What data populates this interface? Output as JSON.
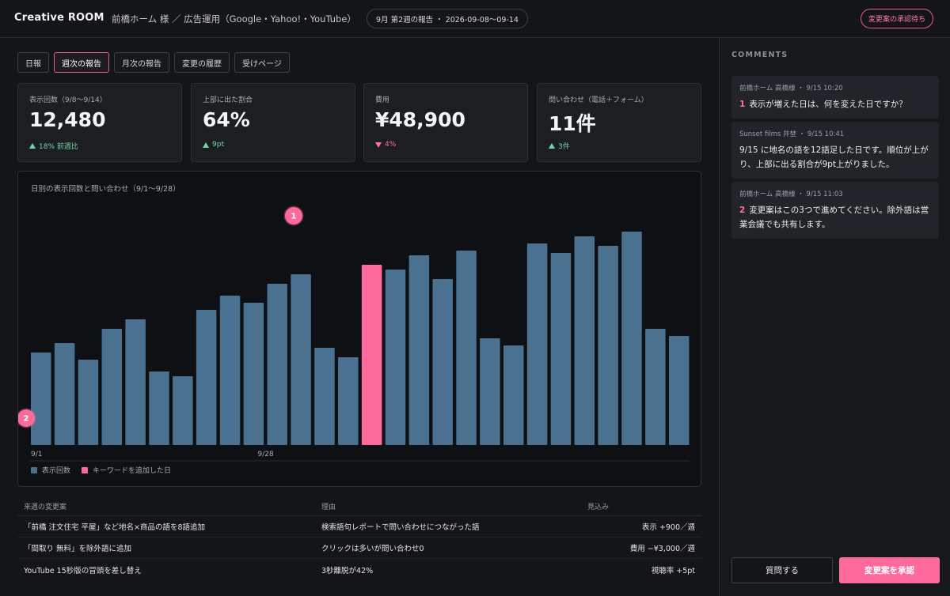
{
  "header": {
    "brand": "Creative ROOM",
    "client": "前橋ホーム 様 ／ 広告運用（Google・Yahoo!・YouTube）",
    "period": "9月 第2週の報告 ・ 2026-09-08〜09-14",
    "status": "変更案の承認待ち"
  },
  "tabs": [
    {
      "label": "日報"
    },
    {
      "label": "週次の報告"
    },
    {
      "label": "月次の報告"
    },
    {
      "label": "変更の履歴"
    },
    {
      "label": "受けページ"
    }
  ],
  "kpis": [
    {
      "label": "表示回数（9/8〜9/14）",
      "value": "12,480",
      "delta": "18% 前週比",
      "direction": "up"
    },
    {
      "label": "上部に出た割合",
      "value": "64%",
      "delta": "9pt",
      "direction": "up"
    },
    {
      "label": "費用",
      "value": "¥48,900",
      "delta": "4%",
      "direction": "down"
    },
    {
      "label": "問い合わせ（電話＋フォーム）",
      "value": "11件",
      "delta": "3件",
      "direction": "up"
    }
  ],
  "chart": {
    "title": "日別の表示回数と問い合わせ（9/1〜9/28）",
    "legend": [
      {
        "label": "表示回数",
        "color": "#4a7190"
      },
      {
        "label": "キーワードを追加した日",
        "color": "#ff6a9c"
      }
    ],
    "markers": [
      "1",
      "2"
    ]
  },
  "chart_data": {
    "type": "bar",
    "title": "日別の表示回数と問い合わせ（9/1〜9/28）",
    "categories": [
      "9/1",
      "9/2",
      "9/3",
      "9/4",
      "9/5",
      "9/6",
      "9/7",
      "9/8",
      "9/9",
      "9/10",
      "9/11",
      "9/12",
      "9/13",
      "9/14",
      "9/15",
      "9/16",
      "9/17",
      "9/18",
      "9/19",
      "9/20",
      "9/21",
      "9/22",
      "9/23",
      "9/24",
      "9/25",
      "9/26",
      "9/27",
      "9/28"
    ],
    "x_tick_labels": [
      "9/1",
      "9/28"
    ],
    "series": [
      {
        "name": "表示回数",
        "values": [
          39,
          43,
          36,
          49,
          53,
          31,
          29,
          57,
          63,
          60,
          68,
          72,
          41,
          37,
          76,
          74,
          80,
          70,
          82,
          45,
          42,
          85,
          81,
          88,
          84,
          90,
          49,
          46
        ]
      }
    ],
    "highlight_index": 14,
    "colors": {
      "bar": "#4a7190",
      "highlight": "#ff6a9c"
    }
  },
  "plan": {
    "headers": [
      "来週の変更案",
      "理由",
      "見込み"
    ],
    "rows": [
      [
        "「前橋 注文住宅 平屋」など地名×商品の語を8語追加",
        "検索語句レポートで問い合わせにつながった語",
        "表示 +900／週"
      ],
      [
        "「間取り 無料」を除外語に追加",
        "クリックは多いが問い合わせ0",
        "費用 −¥3,000／週"
      ],
      [
        "YouTube 15秒版の冒頭を差し替え",
        "3秒離脱が42%",
        "視聴率 +5pt"
      ]
    ]
  },
  "sidebar": {
    "title": "COMMENTS",
    "comments": [
      {
        "meta": "前橋ホーム 高橋様 ・ 9/15 10:20",
        "num": "1",
        "text": "表示が増えた日は、何を変えた日ですか？"
      },
      {
        "meta": "Sunset films 井埜 ・ 9/15 10:41",
        "num": "",
        "text": "9/15 に地名の語を12語足した日です。順位が上がり、上部に出る割合が9pt上がりました。"
      },
      {
        "meta": "前橋ホーム 高橋様 ・ 9/15 11:03",
        "num": "2",
        "text": "変更案はこの3つで進めてください。除外語は営業会議でも共有します。"
      }
    ],
    "ask_label": "質問する",
    "approve_label": "変更案を承認"
  }
}
